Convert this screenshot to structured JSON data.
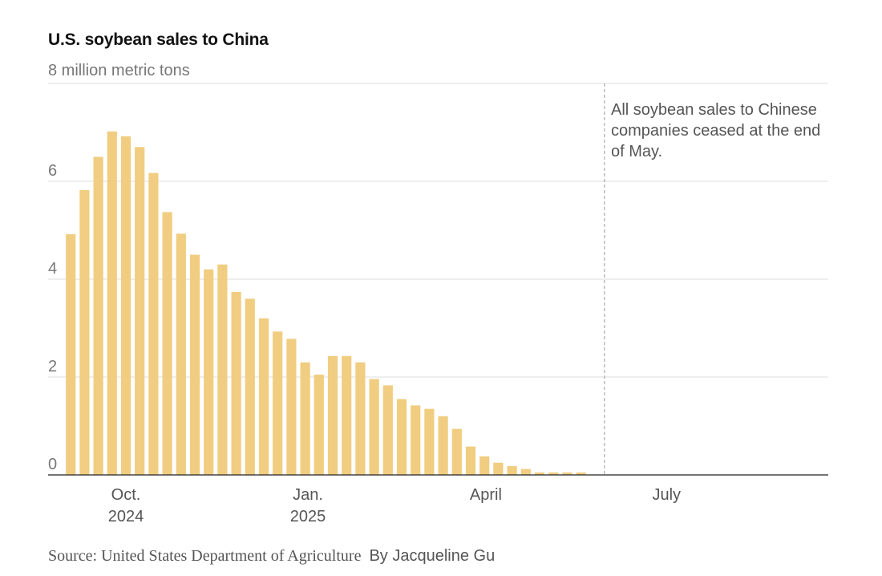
{
  "chart_data": {
    "type": "bar",
    "title": "U.S. soybean sales to China",
    "unit_label": "8 million metric tons",
    "ylim": [
      0,
      8
    ],
    "y_ticks": [
      {
        "value": 6,
        "label": "6"
      },
      {
        "value": 4,
        "label": "4"
      },
      {
        "value": 2,
        "label": "2"
      },
      {
        "value": 0,
        "label": "0"
      }
    ],
    "x_ticks": [
      {
        "line1": "Oct.",
        "line2": "2024",
        "index": 4
      },
      {
        "line1": "Jan.",
        "line2": "2025",
        "index": 17.2
      },
      {
        "line1": "April",
        "line2": "",
        "index": 30.1
      },
      {
        "line1": "July",
        "line2": "",
        "index": 43.2
      }
    ],
    "grid": true,
    "bar_color": "#f0cd80",
    "values": [
      4.92,
      5.82,
      6.5,
      7.02,
      6.92,
      6.7,
      6.17,
      5.37,
      4.93,
      4.5,
      4.2,
      4.3,
      3.74,
      3.6,
      3.2,
      2.93,
      2.78,
      2.3,
      2.05,
      2.43,
      2.43,
      2.3,
      1.96,
      1.83,
      1.55,
      1.42,
      1.35,
      1.2,
      0.94,
      0.58,
      0.38,
      0.25,
      0.18,
      0.12,
      0.05,
      0.05,
      0.05,
      0.05
    ],
    "total_weeks": 56,
    "cutoff_index": 38.7,
    "annotation": "All soybean sales to Chinese companies ceased at the end of May."
  },
  "footer": {
    "source": "Source: United States Department of Agriculture",
    "credit": "By Jacqueline Gu"
  }
}
